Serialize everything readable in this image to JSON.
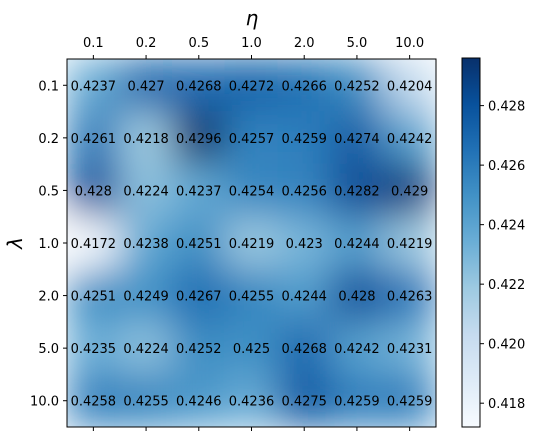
{
  "chart_data": {
    "type": "heatmap",
    "title": "",
    "xlabel": "η",
    "ylabel": "λ",
    "x_categories": [
      "0.1",
      "0.2",
      "0.5",
      "1.0",
      "2.0",
      "5.0",
      "10.0"
    ],
    "y_categories": [
      "0.1",
      "0.2",
      "0.5",
      "1.0",
      "2.0",
      "5.0",
      "10.0"
    ],
    "x_axis_position": "top",
    "values": [
      [
        0.4237,
        0.427,
        0.4268,
        0.4272,
        0.4266,
        0.4252,
        0.4204
      ],
      [
        0.4261,
        0.4218,
        0.4296,
        0.4257,
        0.4259,
        0.4274,
        0.4242
      ],
      [
        0.428,
        0.4224,
        0.4237,
        0.4254,
        0.4256,
        0.4282,
        0.429
      ],
      [
        0.4172,
        0.4238,
        0.4251,
        0.4219,
        0.423,
        0.4244,
        0.4219
      ],
      [
        0.4251,
        0.4249,
        0.4267,
        0.4255,
        0.4244,
        0.428,
        0.4263
      ],
      [
        0.4235,
        0.4224,
        0.4252,
        0.425,
        0.4268,
        0.4242,
        0.4231
      ],
      [
        0.4258,
        0.4255,
        0.4246,
        0.4236,
        0.4275,
        0.4259,
        0.4259
      ]
    ],
    "cell_labels": [
      [
        "0.4237",
        "0.427",
        "0.4268",
        "0.4272",
        "0.4266",
        "0.4252",
        "0.4204"
      ],
      [
        "0.4261",
        "0.4218",
        "0.4296",
        "0.4257",
        "0.4259",
        "0.4274",
        "0.4242"
      ],
      [
        "0.428",
        "0.4224",
        "0.4237",
        "0.4254",
        "0.4256",
        "0.4282",
        "0.429"
      ],
      [
        "0.4172",
        "0.4238",
        "0.4251",
        "0.4219",
        "0.423",
        "0.4244",
        "0.4219"
      ],
      [
        "0.4251",
        "0.4249",
        "0.4267",
        "0.4255",
        "0.4244",
        "0.428",
        "0.4263"
      ],
      [
        "0.4235",
        "0.4224",
        "0.4252",
        "0.425",
        "0.4268",
        "0.4242",
        "0.4231"
      ],
      [
        "0.4258",
        "0.4255",
        "0.4246",
        "0.4236",
        "0.4275",
        "0.4259",
        "0.4259"
      ]
    ],
    "colorbar": {
      "colormap": "Blues",
      "range": [
        0.4172,
        0.4296
      ],
      "tick_values": [
        0.418,
        0.42,
        0.422,
        0.424,
        0.426,
        0.428
      ],
      "tick_labels": [
        "0.418",
        "0.420",
        "0.422",
        "0.424",
        "0.426",
        "0.428"
      ]
    },
    "interpolation": "smooth",
    "grid": false
  }
}
